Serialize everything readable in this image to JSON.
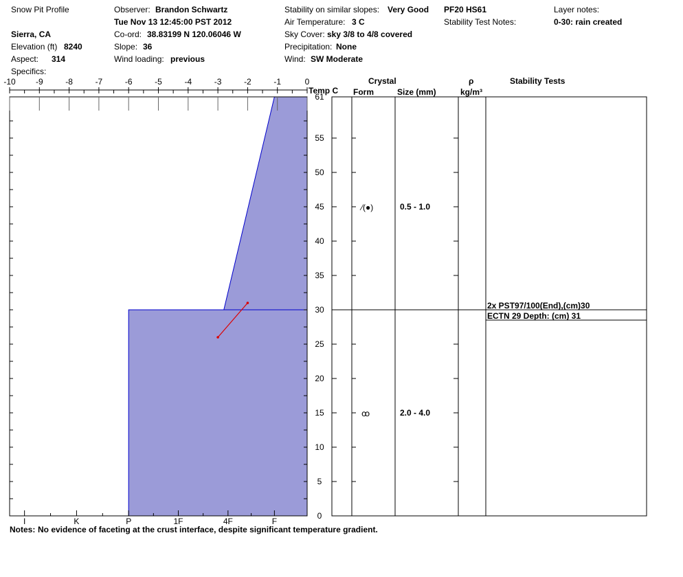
{
  "header": {
    "title": "Snow Pit Profile",
    "location": "Sierra, CA",
    "elevation_label": "Elevation (ft)",
    "elevation": "8240",
    "aspect_label": "Aspect:",
    "aspect": "314",
    "specifics_label": "Specifics:",
    "observer_label": "Observer:",
    "observer": "Brandon Schwartz",
    "datetime": "Tue Nov 13 12:45:00 PST 2012",
    "coord_label": "Co-ord:",
    "coord": "38.83199 N 120.06046 W",
    "slope_label": "Slope:",
    "slope": "36",
    "wind_loading_label": "Wind loading:",
    "wind_loading": "previous",
    "stability_label": "Stability on similar slopes:",
    "stability": "Very Good",
    "air_temp_label": "Air Temperature:",
    "air_temp": "3 C",
    "sky_label": "Sky Cover:",
    "sky": "sky 3/8 to 4/8 covered",
    "precip_label": "Precipitation:",
    "precip": "None",
    "wind_label": "Wind:",
    "wind": "SW Moderate",
    "pf_hs": "PF20 HS61",
    "stability_notes_label": "Stability Test Notes:",
    "layer_notes_label": "Layer notes:",
    "layer_notes": "0-30: rain created"
  },
  "columns": {
    "temp_label": "Temp C",
    "crystal_label": "Crystal",
    "form_label": "Form",
    "size_label": "Size (mm)",
    "rho_label": "ρ",
    "density_unit": "kg/m³",
    "stability_tests_label": "Stability Tests"
  },
  "notes_label": "Notes:",
  "notes": "No evidence of faceting at the crust interface, despite significant temperature gradient.",
  "chart_data": {
    "type": "area",
    "temp_axis": {
      "range": [
        -10,
        0
      ],
      "ticks": [
        "-10",
        "-9",
        "-8",
        "-7",
        "-6",
        "-5",
        "-4",
        "-3",
        "-2",
        "-1",
        "0"
      ]
    },
    "depth_axis": {
      "label": "",
      "range": [
        0,
        61
      ],
      "ticks": [
        "0",
        "5",
        "10",
        "15",
        "20",
        "25",
        "30",
        "35",
        "40",
        "45",
        "50",
        "55",
        "61"
      ]
    },
    "hardness_axis": {
      "ticks": [
        "I",
        "K",
        "P",
        "1F",
        "4F",
        "F"
      ]
    },
    "hardness_profile": [
      {
        "from_cm": 0,
        "to_cm": 30,
        "hardness_at_bottom": -6,
        "hardness_at_top": -6,
        "hardness_label": "P"
      },
      {
        "from_cm": 30,
        "to_cm": 61,
        "hardness_at_bottom": -2.8,
        "hardness_at_top": -1.1,
        "hardness_label": "4F to F"
      }
    ],
    "temperature_profile": [
      {
        "depth_cm": 26,
        "temp_c": -3.0
      },
      {
        "depth_cm": 31,
        "temp_c": -2.0
      }
    ],
    "layer_boundaries_cm": [
      30
    ],
    "layers": [
      {
        "depth_cm": 45,
        "form_symbols": "⁄(●)",
        "size": "0.5 - 1.0"
      },
      {
        "depth_cm": 15,
        "form_symbols": "ꝏ",
        "size": "2.0 - 4.0"
      }
    ],
    "stability_tests": [
      {
        "depth_cm": 30,
        "text": "2x PST97/100(End),(cm)30"
      },
      {
        "depth_cm": 30,
        "text": "ECTN 29   Depth: (cm) 31"
      }
    ],
    "colors": {
      "fill": "#9b9bd8",
      "outline": "#0000cc",
      "temperature": "#dd0000"
    }
  }
}
